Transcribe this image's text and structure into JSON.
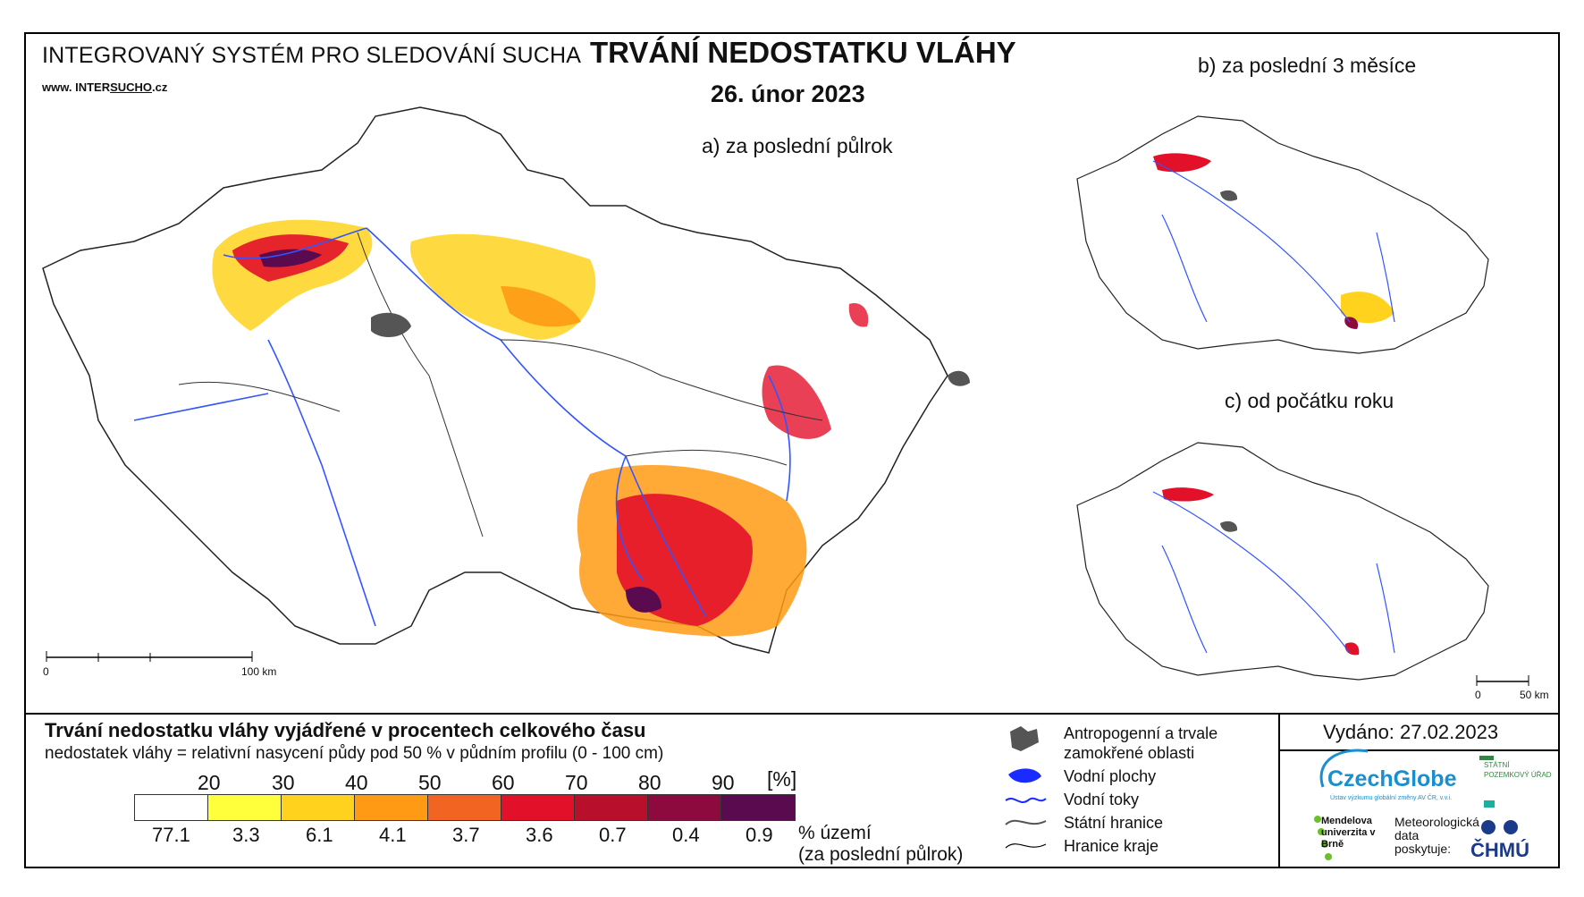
{
  "header": {
    "system_title": "INTEGROVANÝ SYSTÉM PRO SLEDOVÁNÍ SUCHA",
    "url_prefix": "www. INTER",
    "url_mid": "SUCHO",
    "url_suffix": ".cz",
    "title": "TRVÁNÍ NEDOSTATKU VLÁHY",
    "date": "26. únor 2023"
  },
  "maps": {
    "a_label": "a) za poslední půlrok",
    "b_label": "b) za poslední 3 měsíce",
    "c_label": "c) od počátku roku",
    "scale_main": {
      "zero": "0",
      "end": "100 km"
    },
    "scale_small": {
      "zero": "0",
      "end": "50 km"
    }
  },
  "legend": {
    "title": "Trvání nedostatku vláhy vyjádřené v procentech celkového času",
    "subtitle": "nedostatek vláhy = relativní nasycení půdy pod 50 % v půdním profilu (0 - 100 cm)",
    "thresholds": [
      "20",
      "30",
      "40",
      "50",
      "60",
      "70",
      "80",
      "90"
    ],
    "unit": "[%]",
    "colors": [
      "#ffffff",
      "#ffff3c",
      "#ffd21e",
      "#ff9a14",
      "#f26422",
      "#e3102a",
      "#b8102c",
      "#8c0a3e",
      "#5a0a4e"
    ],
    "area_values": [
      "77.1",
      "3.3",
      "6.1",
      "4.1",
      "3.7",
      "3.6",
      "0.7",
      "0.4",
      "0.9"
    ],
    "area_label": "% území",
    "area_label2": "(za poslední půlrok)"
  },
  "key": {
    "urban": "Antropogenní a trvale",
    "urban2": "zamokřené oblasti",
    "water_bodies": "Vodní plochy",
    "rivers": "Vodní toky",
    "state_border": "Státní hranice",
    "region_border": "Hranice kraje"
  },
  "issued": "Vydáno: 27.02.2023",
  "logos": {
    "czechglobe": "CzechGlobe",
    "czechglobe_sub": "Ústav výzkumu globální změny AV ČR, v.v.i.",
    "spu": "STÁTNÍ POZEMKOVÝ ÚŘAD",
    "mendel": "Mendelova univerzita v Brně",
    "meteo": "Meteorologická data poskytuje:",
    "chmu": "ČHMÚ"
  }
}
